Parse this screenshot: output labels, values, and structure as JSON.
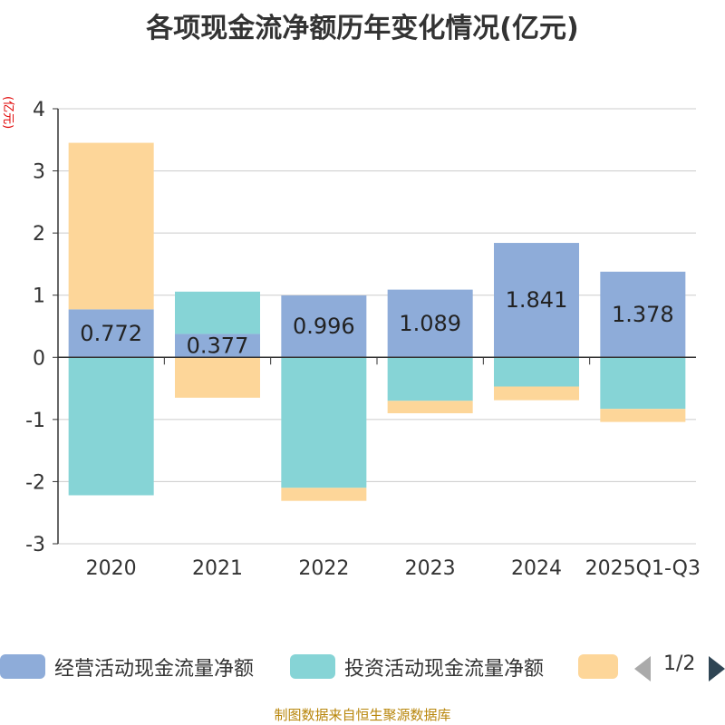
{
  "title": "各项现金流净额历年变化情况(亿元)",
  "unit_label": "(亿元)",
  "source": "制图数据来自恒生聚源数据库",
  "pager": {
    "text": "1/2"
  },
  "chart_data": {
    "type": "bar",
    "stacked": true,
    "categories": [
      "2020",
      "2021",
      "2022",
      "2023",
      "2024",
      "2025Q1-Q3"
    ],
    "ylim": [
      -3,
      4
    ],
    "yticks": [
      4,
      3,
      2,
      1,
      0,
      -1,
      -2,
      -3
    ],
    "series": [
      {
        "name": "经营活动现金流量净额",
        "color": "#8eacd9",
        "values": [
          0.772,
          0.377,
          0.996,
          1.089,
          1.841,
          1.378
        ],
        "labels": [
          "0.772",
          "0.377",
          "0.996",
          "1.089",
          "1.841",
          "1.378"
        ]
      },
      {
        "name": "投资活动现金流量净额",
        "color": "#86d4d6",
        "values": [
          -2.22,
          0.68,
          -2.1,
          -0.7,
          -0.47,
          -0.83
        ]
      },
      {
        "name": "",
        "color": "#fdd699",
        "values": [
          2.68,
          -0.65,
          -0.21,
          -0.2,
          -0.22,
          -0.21
        ]
      }
    ]
  }
}
